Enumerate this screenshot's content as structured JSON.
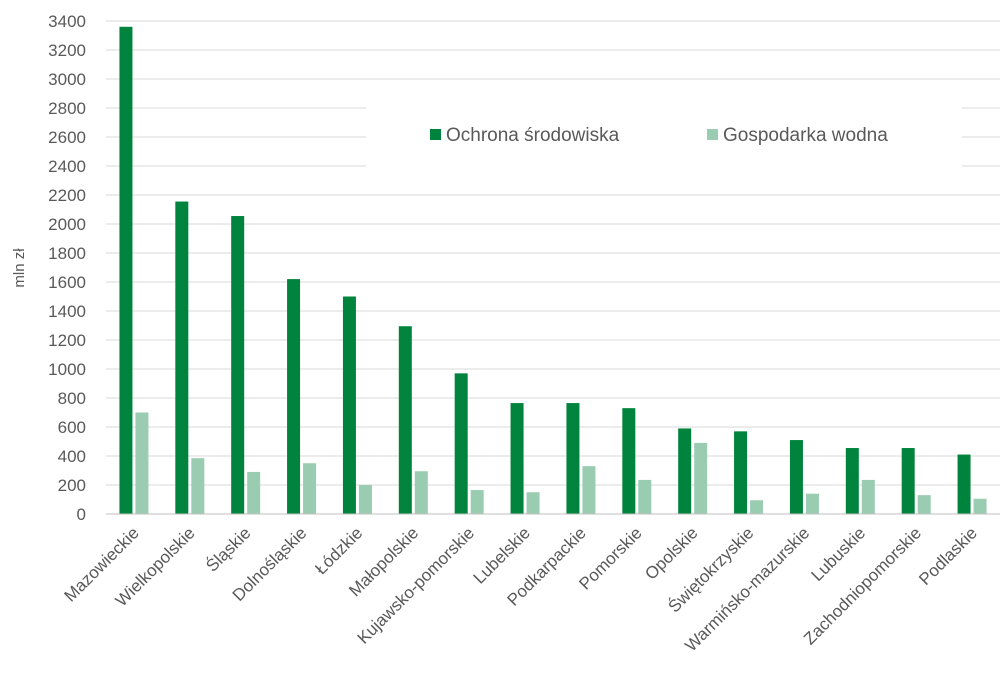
{
  "chart_data": {
    "type": "bar",
    "ylabel": "mln zł",
    "ylim": [
      0,
      3400
    ],
    "yticks": [
      0,
      200,
      400,
      600,
      800,
      1000,
      1200,
      1400,
      1600,
      1800,
      2000,
      2200,
      2400,
      2600,
      2800,
      3000,
      3200,
      3400
    ],
    "grid": true,
    "legend_position": "top-right",
    "categories": [
      "Mazowieckie",
      "Wielkopolskie",
      "Śląskie",
      "Dolnośląskie",
      "Łódzkie",
      "Małopolskie",
      "Kujawsko-pomorskie",
      "Lubelskie",
      "Podkarpackie",
      "Pomorskie",
      "Opolskie",
      "Świętokrzyskie",
      "Warmińsko-mazurskie",
      "Lubuskie",
      "Zachodniopomorskie",
      "Podlaskie"
    ],
    "series": [
      {
        "name": "Ochrona środowiska",
        "color": "#00843d",
        "values": [
          3360,
          2155,
          2055,
          1620,
          1500,
          1295,
          970,
          765,
          765,
          730,
          590,
          570,
          510,
          455,
          455,
          410
        ]
      },
      {
        "name": "Gospodarka wodna",
        "color": "#99ccb1",
        "values": [
          700,
          385,
          290,
          350,
          200,
          295,
          165,
          150,
          330,
          235,
          490,
          95,
          140,
          235,
          130,
          105
        ]
      }
    ]
  }
}
